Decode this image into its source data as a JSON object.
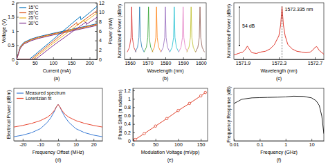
{
  "chart_data": [
    {
      "type": "line",
      "title": "(a)",
      "x_label": "Current (mA)",
      "y_label": "Voltage (V)",
      "y2_label": "Power (mW)",
      "xlim": [
        0,
        220
      ],
      "xticks": [
        0,
        50,
        100,
        150,
        200
      ],
      "ylim": [
        0,
        2
      ],
      "yticks": [
        0,
        0.5,
        1,
        1.5,
        2
      ],
      "y2lim": [
        0,
        12
      ],
      "y2ticks": [
        0,
        2,
        4,
        6,
        8,
        10,
        12
      ],
      "legend": "upper left",
      "series": [
        {
          "name": "15°C",
          "color": "#0072bd",
          "x": [
            0,
            10,
            20,
            40,
            60,
            100,
            150,
            200,
            220
          ],
          "values": [
            0,
            0.45,
            0.6,
            0.72,
            0.8,
            0.92,
            1.06,
            1.2,
            1.26
          ]
        },
        {
          "name": "20°C",
          "color": "#d95319",
          "x": [
            0,
            10,
            20,
            40,
            60,
            100,
            150,
            200,
            220
          ],
          "values": [
            0,
            0.43,
            0.58,
            0.7,
            0.78,
            0.9,
            1.04,
            1.18,
            1.24
          ]
        },
        {
          "name": "25°C",
          "color": "#edb120",
          "x": [
            0,
            10,
            20,
            40,
            60,
            100,
            150,
            200,
            220
          ],
          "values": [
            0,
            0.41,
            0.56,
            0.68,
            0.76,
            0.88,
            1.02,
            1.16,
            1.22
          ]
        },
        {
          "name": "30°C",
          "color": "#7e2f8e",
          "x": [
            0,
            10,
            20,
            40,
            60,
            100,
            150,
            200,
            220
          ],
          "values": [
            0,
            0.39,
            0.54,
            0.66,
            0.74,
            0.86,
            1.0,
            1.14,
            1.2
          ]
        },
        {
          "color": "#0072bd",
          "axis": "y2",
          "x": [
            0,
            35,
            100,
            150,
            175,
            176,
            200,
            220
          ],
          "values": [
            0,
            0,
            4.2,
            7.5,
            9.1,
            8.4,
            9.9,
            11.2
          ]
        },
        {
          "color": "#d95319",
          "axis": "y2",
          "x": [
            0,
            40,
            100,
            150,
            165,
            166,
            200,
            220
          ],
          "values": [
            0,
            0,
            3.8,
            6.9,
            7.8,
            7.2,
            9.2,
            10.3
          ]
        },
        {
          "color": "#edb120",
          "axis": "y2",
          "x": [
            0,
            45,
            100,
            150,
            185,
            186,
            220
          ],
          "values": [
            0,
            0,
            3.4,
            6.3,
            8.4,
            7.9,
            9.8
          ]
        },
        {
          "color": "#7e2f8e",
          "axis": "y2",
          "x": [
            0,
            52,
            100,
            150,
            190,
            191,
            220
          ],
          "values": [
            0,
            0,
            2.9,
            5.7,
            7.9,
            7.4,
            8.9
          ]
        }
      ]
    },
    {
      "type": "line",
      "title": "(b)",
      "x_label": "Wavelength (nm)",
      "y_label": "Normalized Power (dBm)",
      "xlim": [
        1557,
        1603
      ],
      "xticks": [
        1560,
        1570,
        1580,
        1590,
        1600
      ],
      "ylim": [
        -65,
        5
      ],
      "tick_labels": "x",
      "series": [
        {
          "color": "#d62728",
          "x": [
            1558.5,
            1559.8,
            1560.6,
            1561,
            1561.4,
            1562.2,
            1563.5
          ],
          "values": [
            -56,
            -50,
            -38,
            0,
            -38,
            -50,
            -56
          ]
        },
        {
          "color": "#1f77b4",
          "x": [
            1563,
            1564.3,
            1565.1,
            1565.5,
            1565.9,
            1566.7,
            1568
          ],
          "values": [
            -56,
            -50,
            -38,
            0,
            -38,
            -50,
            -56
          ]
        },
        {
          "color": "#2ca02c",
          "x": [
            1568,
            1569.3,
            1570.1,
            1570.5,
            1570.9,
            1571.7,
            1573
          ],
          "values": [
            -56,
            -50,
            -38,
            0,
            -38,
            -50,
            -56
          ]
        },
        {
          "color": "#ff7f0e",
          "x": [
            1572.5,
            1573.8,
            1574.6,
            1575,
            1575.4,
            1576.2,
            1577.5
          ],
          "values": [
            -56,
            -50,
            -38,
            0,
            -38,
            -50,
            -56
          ]
        },
        {
          "color": "#9467bd",
          "x": [
            1577.5,
            1578.8,
            1579.6,
            1580,
            1580.4,
            1581.2,
            1582.5
          ],
          "values": [
            -56,
            -50,
            -38,
            0,
            -38,
            -50,
            -56
          ]
        },
        {
          "color": "#17becf",
          "x": [
            1582.5,
            1583.8,
            1584.6,
            1585,
            1585.4,
            1586.2,
            1587.5
          ],
          "values": [
            -56,
            -50,
            -38,
            0,
            -38,
            -50,
            -56
          ]
        },
        {
          "color": "#e377c2",
          "x": [
            1587.5,
            1588.8,
            1589.6,
            1590,
            1590.4,
            1591.2,
            1592.5
          ],
          "values": [
            -56,
            -50,
            -38,
            0,
            -38,
            -50,
            -56
          ]
        },
        {
          "color": "#bcbd22",
          "x": [
            1592,
            1593.3,
            1594.1,
            1594.5,
            1594.9,
            1595.7,
            1597
          ],
          "values": [
            -56,
            -50,
            -38,
            0,
            -38,
            -50,
            -56
          ]
        },
        {
          "color": "#8c564b",
          "x": [
            1597,
            1598.3,
            1599.1,
            1599.5,
            1599.9,
            1600.7,
            1602
          ],
          "values": [
            -56,
            -50,
            -38,
            0,
            -38,
            -50,
            -56
          ]
        }
      ]
    },
    {
      "type": "line",
      "title": "(c)",
      "x_label": "Wavelength (nm)",
      "y_label": "Normalized Power (dBm)",
      "xlim": [
        1571.8,
        1572.8
      ],
      "xticks": [
        1571.9,
        1572.3,
        1572.7
      ],
      "ylim": [
        -72,
        5
      ],
      "tick_labels": "x",
      "annotations": [
        "1572.335 nm",
        "54 dB"
      ],
      "series": [
        {
          "color": "#e03a2f",
          "x": [
            1571.8,
            1571.85,
            1571.9,
            1571.93,
            1571.95,
            1571.97,
            1572.0,
            1572.05,
            1572.1,
            1572.15,
            1572.2,
            1572.25,
            1572.3,
            1572.32,
            1572.335,
            1572.35,
            1572.37,
            1572.4,
            1572.45,
            1572.5,
            1572.55,
            1572.6,
            1572.65,
            1572.68,
            1572.7,
            1572.72,
            1572.75,
            1572.8
          ],
          "values": [
            -66,
            -64,
            -62,
            -58,
            -54,
            -58,
            -63,
            -64,
            -62,
            -61,
            -58,
            -52,
            -40,
            -25,
            0,
            -25,
            -40,
            -52,
            -58,
            -61,
            -62,
            -63,
            -62,
            -59,
            -56,
            -54.5,
            -60,
            -65
          ]
        }
      ]
    },
    {
      "type": "line",
      "title": "(d)",
      "x_label": "Frequency Offset (MHz)",
      "y_label": "Electrical Power (dBm)",
      "xlim": [
        -25,
        25
      ],
      "xticks": [
        -20,
        -10,
        0,
        10,
        20
      ],
      "ylim": [
        -45,
        20
      ],
      "tick_labels": "x",
      "legend": "upper left",
      "x": [
        -25,
        -20,
        -15,
        -10,
        -6,
        -4,
        -2,
        -1,
        0,
        1,
        2,
        4,
        6,
        10,
        15,
        20,
        25
      ],
      "series": [
        {
          "name": "Measured spectrum",
          "color": "#3a7bd5",
          "values": [
            -40,
            -38,
            -35,
            -30,
            -22,
            -16,
            -8,
            -3,
            0,
            -3,
            -8,
            -16,
            -22,
            -30,
            -35,
            -38,
            -40
          ]
        },
        {
          "name": "Lorentzian fit",
          "color": "#e8442e",
          "values": [
            -28,
            -26,
            -23.5,
            -20,
            -15.7,
            -12.3,
            -7,
            -3,
            0,
            -3,
            -7,
            -12.3,
            -15.7,
            -20,
            -23.5,
            -26,
            -28
          ]
        }
      ]
    },
    {
      "type": "line",
      "title": "(e)",
      "x_label": "Modulation Voltage (mVpp)",
      "y_label": "Phase Shift (π radians)",
      "xlim": [
        0,
        165
      ],
      "xticks": [
        0,
        50,
        100,
        150
      ],
      "ylim": [
        0,
        1.25
      ],
      "yticks": [
        0,
        0.2,
        0.4,
        0.6,
        0.8,
        1,
        1.2
      ],
      "marker": "circle",
      "series": [
        {
          "color": "#e0402a",
          "x": [
            5,
            25,
            50,
            75,
            100,
            125,
            150,
            160
          ],
          "values": [
            0.03,
            0.17,
            0.35,
            0.53,
            0.72,
            0.89,
            1.07,
            1.15
          ]
        }
      ]
    },
    {
      "type": "line",
      "title": "(f)",
      "x_label": "Frequency (GHz)",
      "y_label": "Frequency Response (dB)",
      "log": "x",
      "xlim": [
        0.01,
        30
      ],
      "xticks": [
        0.01,
        0.1,
        1,
        10
      ],
      "ylim": [
        -9,
        2
      ],
      "tick_labels": "x",
      "series": [
        {
          "color": "#222222",
          "x": [
            0.01,
            0.02,
            0.05,
            0.1,
            0.2,
            0.5,
            1,
            2,
            5,
            10,
            15,
            20,
            25,
            30
          ],
          "values": [
            -1.2,
            -0.3,
            0,
            0.05,
            0.1,
            0.15,
            0.2,
            0.35,
            0.3,
            0,
            -0.6,
            -1.6,
            -3.8,
            -7.5
          ]
        }
      ]
    }
  ]
}
